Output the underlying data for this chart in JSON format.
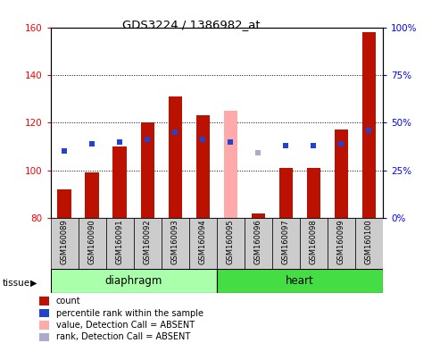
{
  "title": "GDS3224 / 1386982_at",
  "samples": [
    "GSM160089",
    "GSM160090",
    "GSM160091",
    "GSM160092",
    "GSM160093",
    "GSM160094",
    "GSM160095",
    "GSM160096",
    "GSM160097",
    "GSM160098",
    "GSM160099",
    "GSM160100"
  ],
  "bar_values": [
    92,
    99,
    110,
    120,
    131,
    123,
    125,
    82,
    101,
    101,
    117,
    158
  ],
  "bar_bottom": 80,
  "rank_values": [
    35,
    39,
    40,
    41,
    45,
    41,
    40,
    34,
    38,
    38,
    39,
    46
  ],
  "rank_is_absent": [
    false,
    false,
    false,
    false,
    false,
    false,
    false,
    true,
    false,
    false,
    false,
    false
  ],
  "count_is_absent": [
    false,
    false,
    false,
    false,
    false,
    false,
    true,
    false,
    false,
    false,
    false,
    false
  ],
  "tissue_groups": [
    {
      "label": "diaphragm",
      "start": 0,
      "end": 6
    },
    {
      "label": "heart",
      "start": 6,
      "end": 12
    }
  ],
  "ylim_left": [
    80,
    160
  ],
  "ylim_right": [
    0,
    100
  ],
  "yticks_left": [
    80,
    100,
    120,
    140,
    160
  ],
  "yticks_right": [
    0,
    25,
    50,
    75,
    100
  ],
  "bar_color": "#bb1100",
  "bar_absent_color": "#ffaaaa",
  "rank_color": "#2244cc",
  "rank_absent_color": "#aaaacc",
  "bar_width": 0.5,
  "tissue_diaphragm_color": "#aaffaa",
  "tissue_heart_color": "#44dd44",
  "legend_items": [
    {
      "label": "count",
      "color": "#bb1100"
    },
    {
      "label": "percentile rank within the sample",
      "color": "#2244cc"
    },
    {
      "label": "value, Detection Call = ABSENT",
      "color": "#ffaaaa"
    },
    {
      "label": "rank, Detection Call = ABSENT",
      "color": "#aaaacc"
    }
  ]
}
